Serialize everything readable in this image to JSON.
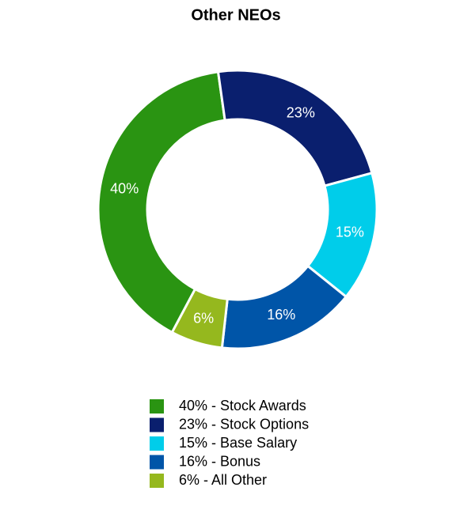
{
  "chart_data": {
    "type": "donut",
    "title": "Other NEOs",
    "categories": [
      "40% - Stock Awards",
      "23% - Stock Options",
      "15% - Base Salary",
      "16% - Bonus",
      "6% - All Other"
    ],
    "values": [
      40,
      23,
      15,
      16,
      6
    ],
    "value_labels": [
      "40%",
      "23%",
      "15%",
      "16%",
      "6%"
    ],
    "colors": [
      "#2a9412",
      "#0a1f6e",
      "#00cdea",
      "#0055a8",
      "#95b81e"
    ]
  }
}
